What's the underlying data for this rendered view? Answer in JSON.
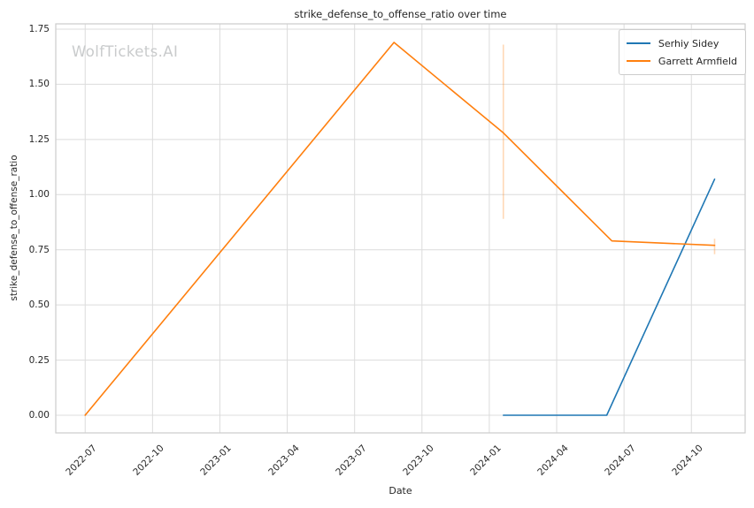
{
  "watermark": {
    "text": "WolfTickets.AI",
    "color": "#c9cbcc"
  },
  "chart_data": {
    "type": "line",
    "title": "strike_defense_to_offense_ratio over time",
    "xlabel": "Date",
    "ylabel": "strike_defense_to_offense_ratio",
    "grid": true,
    "legend_position": "upper right",
    "xlim": [
      "2022-05-22",
      "2024-12-13"
    ],
    "ylim": [
      -0.08,
      1.774
    ],
    "x_ticks": [
      "2022-07",
      "2022-10",
      "2023-01",
      "2023-04",
      "2023-07",
      "2023-10",
      "2024-01",
      "2024-04",
      "2024-07",
      "2024-10"
    ],
    "y_ticks": [
      "0.00",
      "0.25",
      "0.50",
      "0.75",
      "1.00",
      "1.25",
      "1.50",
      "1.75"
    ],
    "series": [
      {
        "name": "Serhiy Sidey",
        "color": "#1f77b4",
        "points": [
          {
            "date": "2024-01-20",
            "value": 0.0
          },
          {
            "date": "2024-06-08",
            "value": 0.0
          },
          {
            "date": "2024-11-02",
            "value": 1.07
          }
        ]
      },
      {
        "name": "Garrett Armfield",
        "color": "#ff7f0e",
        "points": [
          {
            "date": "2022-07-01",
            "value": 0.0
          },
          {
            "date": "2023-08-24",
            "value": 1.69
          },
          {
            "date": "2024-01-20",
            "value": 1.28
          },
          {
            "date": "2024-06-15",
            "value": 0.79
          },
          {
            "date": "2024-11-02",
            "value": 0.77
          }
        ],
        "error_bars": [
          {
            "date": "2024-01-20",
            "low": 0.89,
            "high": 1.68
          },
          {
            "date": "2024-11-02",
            "low": 0.73,
            "high": 0.8
          }
        ]
      }
    ],
    "axis_colors": {
      "grid": "#dcdcdc",
      "spine": "#cccccc",
      "text": "#262626"
    }
  }
}
